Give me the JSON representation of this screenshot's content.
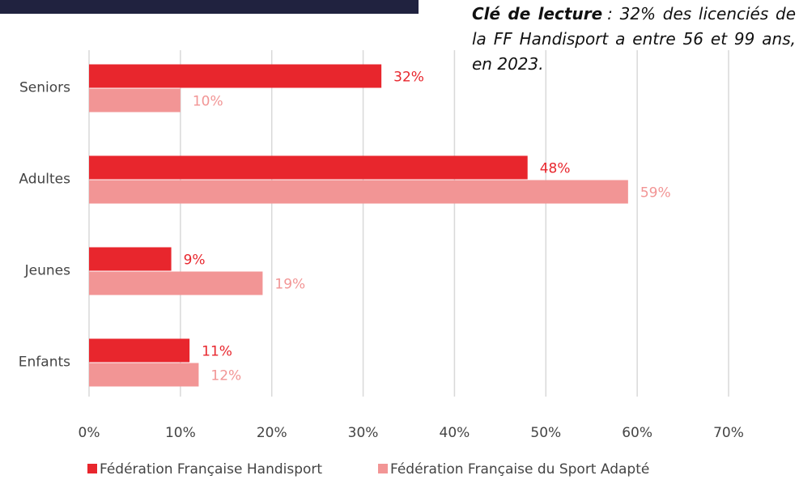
{
  "chart_data": {
    "type": "hbar",
    "annotation": {
      "bold": "Clé de lecture",
      "text": ": 32% des licenciés de la FF Handisport a entre 56 et 99 ans, en 2023."
    },
    "categories": [
      "Seniors",
      "Adultes",
      "Jeunes",
      "Enfants"
    ],
    "series": [
      {
        "name": "Fédération Française Handisport",
        "color": "#e8262d",
        "values": [
          32,
          48,
          9,
          11
        ],
        "value_labels": [
          "32%",
          "48%",
          "9%",
          "11%"
        ]
      },
      {
        "name": "Fédération Française du Sport Adapté",
        "color": "#f29595",
        "values": [
          10,
          59,
          19,
          12
        ],
        "value_labels": [
          "10%",
          "59%",
          "19%",
          "12%"
        ]
      }
    ],
    "xlim": [
      0,
      70
    ],
    "xticks": [
      {
        "value": 0,
        "label": "0%"
      },
      {
        "value": 10,
        "label": "10%"
      },
      {
        "value": 20,
        "label": "20%"
      },
      {
        "value": 30,
        "label": "30%"
      },
      {
        "value": 40,
        "label": "40%"
      },
      {
        "value": 50,
        "label": "50%"
      },
      {
        "value": 60,
        "label": "60%"
      },
      {
        "value": 70,
        "label": "70%"
      }
    ],
    "grid": true,
    "legend": "bottom"
  }
}
